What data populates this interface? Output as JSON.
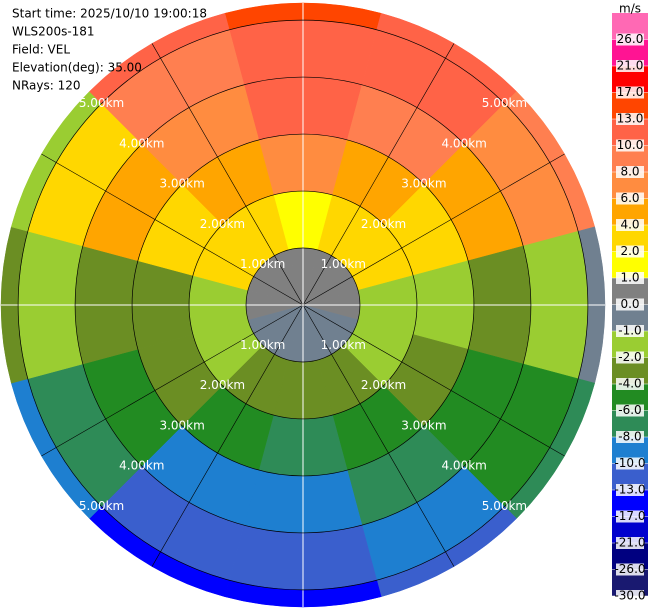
{
  "chart_data": {
    "type": "polar",
    "info": [
      "Start time: 2025/10/10 19:00:18",
      "WLS200s-181",
      "Field: VEL",
      "Elevation(deg): 35.00",
      "NRays: 120"
    ],
    "azimuth_bins": [
      -15,
      15,
      45,
      75,
      105,
      135,
      165,
      195,
      225,
      255,
      285,
      315,
      345
    ],
    "range_bins": [
      0,
      1,
      2,
      3,
      4,
      5,
      5.3
    ],
    "rlim": [
      0,
      5.3
    ],
    "rings": [
      {
        "value": 1,
        "label": "1.00km"
      },
      {
        "value": 2,
        "label": "2.00km"
      },
      {
        "value": 3,
        "label": "3.00km"
      },
      {
        "value": 4,
        "label": "4.00km"
      },
      {
        "value": 5,
        "label": "5.00km"
      }
    ],
    "values": [
      [
        0.5,
        1.5,
        7,
        11,
        12,
        14
      ],
      [
        0.5,
        3,
        5,
        9,
        11,
        11
      ],
      [
        0.5,
        3,
        3,
        5,
        7,
        9
      ],
      [
        0.3,
        -1.5,
        -1.5,
        -3,
        -1.5,
        -0.5
      ],
      [
        -0.5,
        -2,
        -3,
        -5,
        -5,
        -7
      ],
      [
        -0.5,
        -3,
        -5,
        -7,
        -9,
        -11
      ],
      [
        -0.5,
        -3,
        -7,
        -9,
        -11,
        -15
      ],
      [
        -0.5,
        -3,
        -5,
        -9,
        -11,
        -15
      ],
      [
        -0.5,
        -1.5,
        -3,
        -5,
        -7,
        -9
      ],
      [
        0.5,
        -1.5,
        -3,
        -3,
        -1.5,
        -3
      ],
      [
        0.5,
        3,
        3,
        5,
        3,
        -1.5
      ],
      [
        0.5,
        3,
        5,
        7,
        9,
        12
      ]
    ],
    "colorbar": {
      "title": "m/s",
      "lim": [
        -30,
        30
      ],
      "ticks": [
        {
          "value": -30,
          "label": "-30.0"
        },
        {
          "value": -26,
          "label": "-26.0"
        },
        {
          "value": -21,
          "label": "-21.0"
        },
        {
          "value": -17,
          "label": "-17.0"
        },
        {
          "value": -13,
          "label": "-13.0"
        },
        {
          "value": -10,
          "label": "-10.0"
        },
        {
          "value": -8,
          "label": "-8.0"
        },
        {
          "value": -6,
          "label": "-6.0"
        },
        {
          "value": -4,
          "label": "-4.0"
        },
        {
          "value": -2,
          "label": "-2.0"
        },
        {
          "value": -1,
          "label": "-1.0"
        },
        {
          "value": 0,
          "label": "0.0"
        },
        {
          "value": 1,
          "label": "1.0"
        },
        {
          "value": 2,
          "label": "2.0"
        },
        {
          "value": 4,
          "label": "4.0"
        },
        {
          "value": 6,
          "label": "6.0"
        },
        {
          "value": 8,
          "label": "8.0"
        },
        {
          "value": 10,
          "label": "10.0"
        },
        {
          "value": 13,
          "label": "13.0"
        },
        {
          "value": 17,
          "label": "17.0"
        },
        {
          "value": 21,
          "label": "21.0"
        },
        {
          "value": 26,
          "label": "26.0"
        }
      ],
      "colors": [
        "#191970",
        "#000080",
        "#0000cd",
        "#0000ff",
        "#3a5fcd",
        "#1e7fd0",
        "#2e8b57",
        "#228b22",
        "#6b8e23",
        "#9acd32",
        "#708090",
        "#808080",
        "#ffff00",
        "#ffd700",
        "#ffa500",
        "#ff8c40",
        "#ff7f50",
        "#ff6347",
        "#ff4500",
        "#ff0000",
        "#ff1493",
        "#ff69b4"
      ]
    }
  }
}
